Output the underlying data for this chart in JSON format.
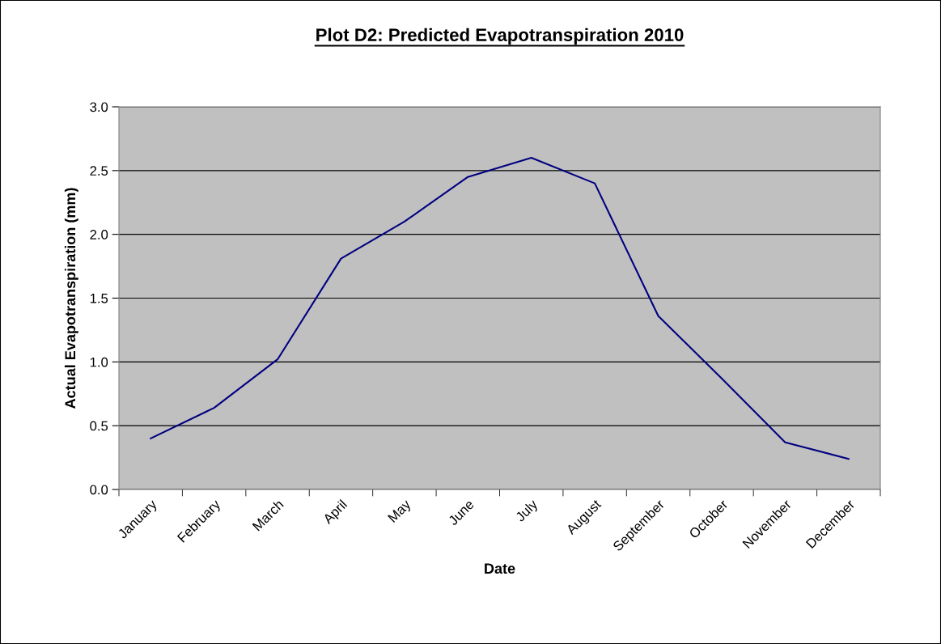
{
  "chart_data": {
    "type": "line",
    "title": "Plot D2: Predicted Evapotranspiration 2010",
    "xlabel": "Date",
    "ylabel": "Actual Evapotranspiration (mm)",
    "categories": [
      "January",
      "February",
      "March",
      "April",
      "May",
      "June",
      "July",
      "August",
      "September",
      "October",
      "November",
      "December"
    ],
    "series": [
      {
        "color": "#000080",
        "values": [
          0.4,
          0.64,
          1.02,
          1.81,
          2.1,
          2.45,
          2.6,
          2.4,
          1.36,
          0.87,
          0.37,
          0.24
        ]
      }
    ],
    "ylim": [
      0,
      3
    ],
    "yticks": [
      {
        "value": 0,
        "label": "0.0"
      },
      {
        "value": 0.5,
        "label": "0.5"
      },
      {
        "value": 1,
        "label": "1.0"
      },
      {
        "value": 1.5,
        "label": "1.5"
      },
      {
        "value": 2,
        "label": "2.0"
      },
      {
        "value": 2.5,
        "label": "2.5"
      },
      {
        "value": 3,
        "label": "3.0"
      }
    ],
    "grid": "y",
    "legend": false,
    "marker": "none",
    "line_style": "solid"
  }
}
